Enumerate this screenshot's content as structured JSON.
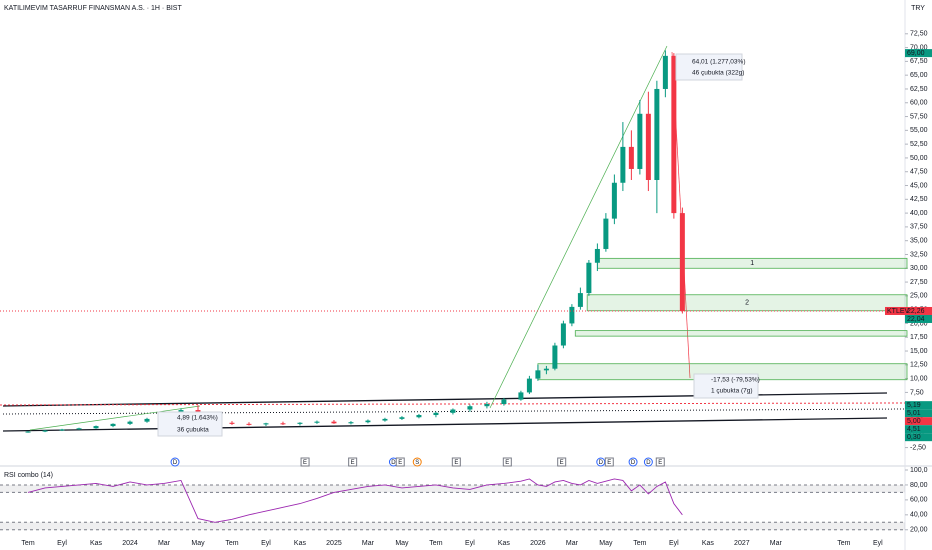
{
  "chart_data": {
    "type": "candlestick",
    "title": "KATILIMEVIM TASARRUF FINANSMAN A.S. · 1H · BIST",
    "currency": "TRY",
    "up_color": "#089981",
    "down_color": "#f23645",
    "x": [
      0,
      1,
      2,
      3,
      4,
      5,
      6,
      7,
      8,
      9,
      10,
      11,
      12,
      13,
      14,
      15,
      16,
      17,
      18,
      19,
      20,
      21,
      22,
      23,
      24,
      25,
      26,
      27,
      28,
      29,
      29.5,
      30,
      30.5,
      31,
      31.5,
      32,
      32.5,
      33,
      33.5,
      34,
      34.5,
      35,
      35.5,
      36,
      36.5,
      37,
      37.5,
      38,
      38.5
    ],
    "open": [
      0.3,
      0.4,
      0.6,
      0.8,
      1.0,
      1.4,
      1.8,
      2.2,
      2.7,
      3.3,
      4.3,
      2.3,
      2.0,
      1.8,
      1.7,
      1.9,
      1.8,
      2.0,
      2.2,
      1.9,
      2.1,
      2.4,
      2.7,
      3.0,
      3.4,
      3.8,
      4.4,
      5.0,
      5.4,
      6.2,
      7.5,
      10.0,
      11.5,
      11.8,
      16.0,
      20.0,
      23.0,
      25.5,
      31.0,
      33.5,
      39.0,
      45.5,
      52.0,
      48.0,
      58.0,
      46.0,
      62.5,
      68.5,
      40.0
    ],
    "high": [
      0.5,
      0.7,
      0.9,
      1.1,
      1.5,
      1.9,
      2.4,
      2.9,
      3.5,
      4.6,
      5.2,
      2.6,
      2.3,
      2.1,
      2.0,
      2.2,
      2.1,
      2.4,
      2.5,
      2.3,
      2.6,
      2.9,
      3.2,
      3.6,
      4.0,
      4.6,
      5.3,
      5.8,
      6.5,
      7.8,
      10.5,
      12.5,
      12.3,
      16.5,
      20.5,
      23.5,
      26.5,
      31.5,
      34.5,
      40.0,
      47.0,
      56.5,
      55.0,
      60.5,
      62.0,
      64.0,
      69.5,
      69.0,
      41.0
    ],
    "low": [
      0.2,
      0.3,
      0.5,
      0.7,
      0.9,
      1.2,
      1.6,
      2.0,
      2.5,
      3.1,
      2.0,
      1.8,
      1.6,
      1.5,
      1.4,
      1.6,
      1.5,
      1.8,
      1.8,
      1.7,
      1.9,
      2.2,
      2.5,
      2.8,
      3.0,
      3.5,
      4.0,
      4.6,
      5.1,
      6.0,
      7.2,
      9.6,
      10.8,
      11.5,
      15.5,
      19.5,
      22.5,
      25.0,
      29.5,
      33.0,
      38.0,
      44.0,
      46.0,
      47.0,
      44.0,
      40.0,
      61.0,
      39.0,
      21.8
    ],
    "close": [
      0.4,
      0.6,
      0.8,
      1.0,
      1.4,
      1.8,
      2.2,
      2.7,
      3.3,
      4.3,
      2.3,
      2.0,
      1.8,
      1.7,
      1.9,
      1.8,
      2.0,
      2.2,
      1.9,
      2.1,
      2.4,
      2.7,
      3.0,
      3.4,
      3.8,
      4.4,
      5.0,
      5.4,
      6.2,
      7.5,
      10.0,
      11.5,
      11.8,
      16.0,
      20.0,
      23.0,
      25.5,
      31.0,
      33.5,
      39.0,
      45.5,
      52.0,
      48.0,
      58.0,
      46.0,
      62.5,
      68.5,
      40.0,
      22.26
    ],
    "xlim": [
      -1.65,
      51.6
    ],
    "xticks": [
      {
        "value": 0,
        "label": "Tem"
      },
      {
        "value": 2,
        "label": "Eyl"
      },
      {
        "value": 4,
        "label": "Kas"
      },
      {
        "value": 6,
        "label": "2024"
      },
      {
        "value": 8,
        "label": "Mar"
      },
      {
        "value": 10,
        "label": "May"
      },
      {
        "value": 12,
        "label": "Tem"
      },
      {
        "value": 14,
        "label": "Eyl"
      },
      {
        "value": 16,
        "label": "Kas"
      },
      {
        "value": 18,
        "label": "2025"
      },
      {
        "value": 20,
        "label": "Mar"
      },
      {
        "value": 22,
        "label": "May"
      },
      {
        "value": 24,
        "label": "Tem"
      },
      {
        "value": 26,
        "label": "Eyl"
      },
      {
        "value": 28,
        "label": "Kas"
      },
      {
        "value": 30,
        "label": "2026"
      },
      {
        "value": 32,
        "label": "Mar"
      },
      {
        "value": 34,
        "label": "May"
      },
      {
        "value": 36,
        "label": "Tem"
      },
      {
        "value": 38,
        "label": "Eyl"
      },
      {
        "value": 40,
        "label": "Kas"
      },
      {
        "value": 42,
        "label": "2027"
      },
      {
        "value": 44,
        "label": "Mar"
      },
      {
        "value": 48,
        "label": "Tem"
      },
      {
        "value": 50,
        "label": "Eyl"
      }
    ],
    "ylim": [
      -3.3,
      75
    ],
    "yticks": [
      {
        "value": -2.5,
        "label": "-2,50"
      },
      {
        "value": 0,
        "label": "0,00"
      },
      {
        "value": 2.5,
        "label": "2,50"
      },
      {
        "value": 5,
        "label": "5,00"
      },
      {
        "value": 7.5,
        "label": "7,50"
      },
      {
        "value": 10,
        "label": "10,00"
      },
      {
        "value": 12.5,
        "label": "12,50"
      },
      {
        "value": 15,
        "label": "15,00"
      },
      {
        "value": 17.5,
        "label": "17,50"
      },
      {
        "value": 20,
        "label": "20,00"
      },
      {
        "value": 22.5,
        "label": "22,50"
      },
      {
        "value": 25,
        "label": "25,00"
      },
      {
        "value": 27.5,
        "label": "27,50"
      },
      {
        "value": 30,
        "label": "30,00"
      },
      {
        "value": 32.5,
        "label": "32,50"
      },
      {
        "value": 35,
        "label": "35,00"
      },
      {
        "value": 37.5,
        "label": "37,50"
      },
      {
        "value": 40,
        "label": "40,00"
      },
      {
        "value": 42.5,
        "label": "42,50"
      },
      {
        "value": 45,
        "label": "45,00"
      },
      {
        "value": 47.5,
        "label": "47,50"
      },
      {
        "value": 50,
        "label": "50,00"
      },
      {
        "value": 52.5,
        "label": "52,50"
      },
      {
        "value": 55,
        "label": "55,00"
      },
      {
        "value": 57.5,
        "label": "57,50"
      },
      {
        "value": 60,
        "label": "60,00"
      },
      {
        "value": 62.5,
        "label": "62,50"
      },
      {
        "value": 65,
        "label": "65,00"
      },
      {
        "value": 67.5,
        "label": "67,50"
      },
      {
        "value": 70,
        "label": "70,00"
      },
      {
        "value": 72.5,
        "label": "72,50"
      }
    ],
    "price_labels": [
      {
        "value": 69.0,
        "label": "69,00",
        "color": "#089981"
      },
      {
        "value": 22.26,
        "label": "22,26",
        "color": "#f23645",
        "symbol": "KTLEV"
      },
      {
        "value": 22.04,
        "label": "22,04",
        "color": "#089981"
      },
      {
        "value": 5.19,
        "label": "5,19",
        "color": "#089981"
      },
      {
        "value": 5.01,
        "label": "5,01",
        "color": "#089981"
      },
      {
        "value": 5.0,
        "label": "5,00",
        "color": "#f23645"
      },
      {
        "value": 4.51,
        "label": "4,51",
        "color": "#089981"
      },
      {
        "value": 0.3,
        "label": "0,30",
        "color": "#089981"
      }
    ],
    "zones": [
      {
        "start": 33.5,
        "low": 30.0,
        "high": 31.8,
        "label": "1"
      },
      {
        "start": 32.9,
        "low": 22.3,
        "high": 25.2,
        "label": "2"
      },
      {
        "start": 32.2,
        "low": 17.7,
        "high": 18.7
      },
      {
        "start": 30.0,
        "low": 9.8,
        "high": 12.7
      }
    ],
    "annotations": [
      "64,01 (1.277,03%)",
      "46 çubukta (322g)",
      "-17,53 (-79,53%)",
      "1 çubukta (7g)",
      "4,89 (1.643%)",
      "36 çubukta"
    ],
    "events": {
      "labels": [
        "D",
        "E",
        "E",
        "D",
        "E",
        "S",
        "E",
        "E",
        "E",
        "D",
        "E",
        "D",
        "D",
        "E"
      ],
      "x": [
        8.65,
        16.3,
        19.1,
        21.5,
        21.9,
        22.9,
        25.2,
        28.2,
        31.4,
        33.7,
        34.2,
        35.6,
        36.5,
        37.2
      ]
    },
    "rsi": {
      "name": "RSI combo (14)",
      "color": "#9c27b0",
      "values": [
        70,
        76,
        78,
        80,
        82,
        78,
        84,
        80,
        82,
        86,
        35,
        30,
        34,
        40,
        45,
        50,
        55,
        62,
        70,
        74,
        78,
        80,
        76,
        78,
        80,
        76,
        74,
        80,
        82,
        85,
        88,
        80,
        78,
        84,
        86,
        82,
        80,
        86,
        82,
        85,
        88,
        86,
        72,
        80,
        68,
        78,
        84,
        55,
        40
      ],
      "ylim": [
        13,
        100
      ],
      "yticks": [
        {
          "value": 100,
          "label": "100,0"
        },
        {
          "value": 80,
          "label": "80,00"
        },
        {
          "value": 60,
          "label": "60,00"
        },
        {
          "value": 40,
          "label": "40,00"
        },
        {
          "value": 20,
          "label": "20,00"
        }
      ],
      "bands": [
        70,
        80,
        20,
        30
      ]
    }
  }
}
